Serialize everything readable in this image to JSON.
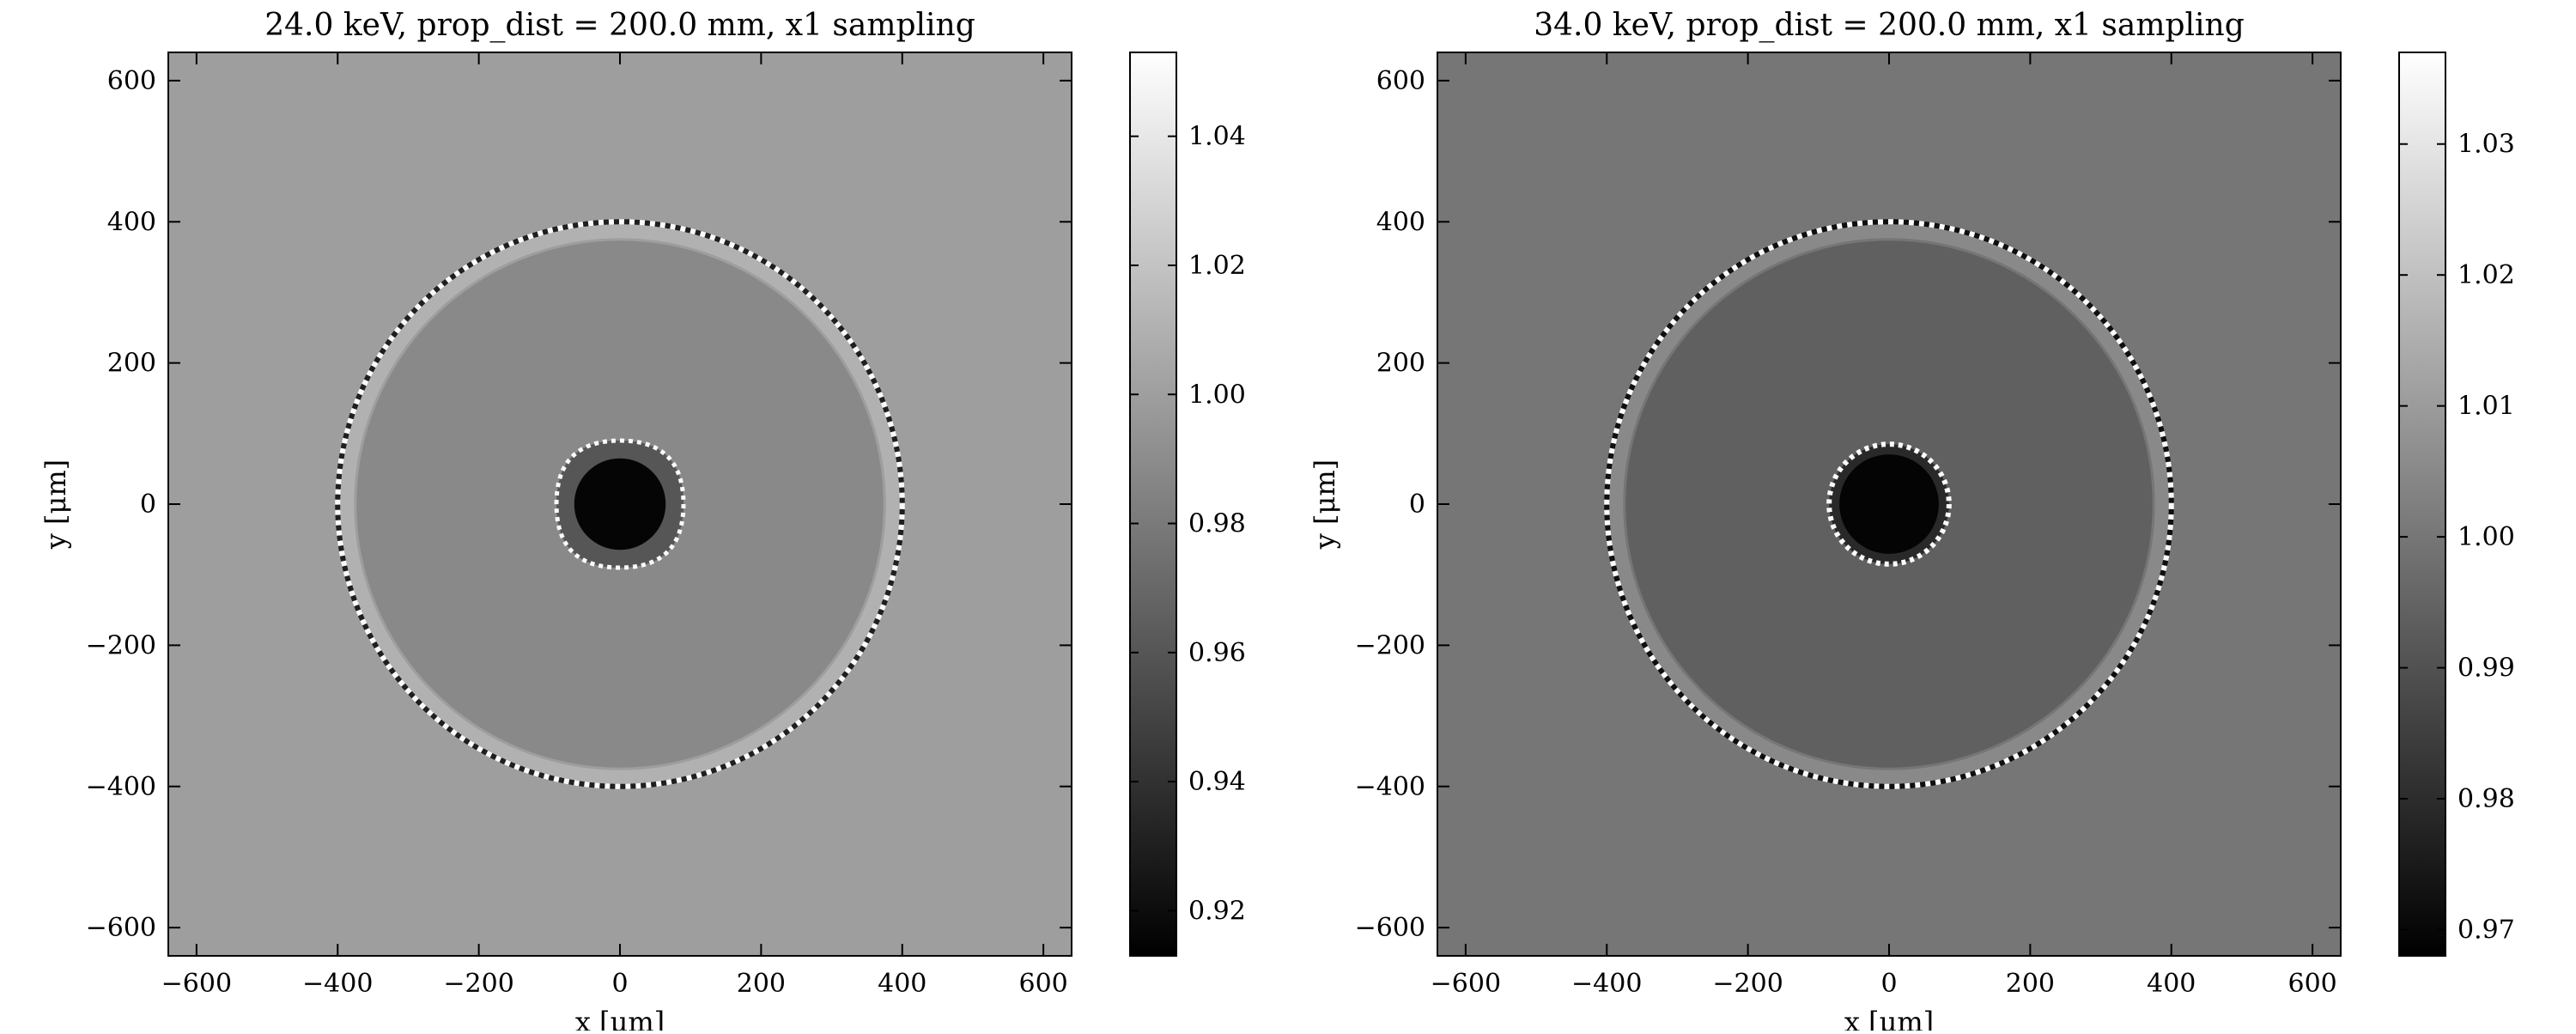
{
  "chart_data": [
    {
      "type": "heatmap",
      "title": "24.0 keV, prop_dist = 200.0 mm, x1 sampling",
      "xlabel": "x [μm]",
      "ylabel": "y [μm]",
      "xlim": [
        -640,
        640
      ],
      "ylim": [
        -640,
        640
      ],
      "xticks": [
        -600,
        -400,
        -200,
        0,
        200,
        400,
        600
      ],
      "yticks": [
        -600,
        -400,
        -200,
        0,
        200,
        400,
        600
      ],
      "xtick_labels": [
        "−600",
        "−400",
        "−200",
        "0",
        "200",
        "400",
        "600"
      ],
      "ytick_labels": [
        "−600",
        "−400",
        "−200",
        "0",
        "200",
        "400",
        "600"
      ],
      "colorbar": {
        "range": [
          0.913,
          1.053
        ],
        "ticks": [
          0.92,
          0.94,
          0.96,
          0.98,
          1.0,
          1.02,
          1.04
        ],
        "tick_labels": [
          "0.92",
          "0.94",
          "0.96",
          "0.98",
          "1.00",
          "1.02",
          "1.04"
        ],
        "colormap": "gray"
      },
      "field": {
        "background": 1.0,
        "outer_radius_um": 400,
        "inner_disc_value": 0.988,
        "inner_radius_um": 90,
        "core_value": 0.916,
        "ring_band_value": 1.01,
        "fringe_min": 0.93,
        "fringe_max": 1.05,
        "inner_shape": "rounded-diamond"
      },
      "grid": false
    },
    {
      "type": "heatmap",
      "title": "34.0 keV, prop_dist = 200.0 mm, x1 sampling",
      "xlabel": "x [μm]",
      "ylabel": "y [μm]",
      "xlim": [
        -640,
        640
      ],
      "ylim": [
        -640,
        640
      ],
      "xticks": [
        -600,
        -400,
        -200,
        0,
        200,
        400,
        600
      ],
      "yticks": [
        -600,
        -400,
        -200,
        0,
        200,
        400,
        600
      ],
      "xtick_labels": [
        "−600",
        "−400",
        "−200",
        "0",
        "200",
        "400",
        "600"
      ],
      "ytick_labels": [
        "−600",
        "−400",
        "−200",
        "0",
        "200",
        "400",
        "600"
      ],
      "colorbar": {
        "range": [
          0.968,
          1.037
        ],
        "ticks": [
          0.97,
          0.98,
          0.99,
          1.0,
          1.01,
          1.02,
          1.03
        ],
        "tick_labels": [
          "0.97",
          "0.98",
          "0.99",
          "1.00",
          "1.01",
          "1.02",
          "1.03"
        ],
        "colormap": "gray"
      },
      "field": {
        "background": 1.0,
        "outer_radius_um": 400,
        "inner_disc_value": 0.994,
        "inner_radius_um": 85,
        "core_value": 0.969,
        "ring_band_value": 1.005,
        "fringe_min": 0.972,
        "fringe_max": 1.036,
        "inner_shape": "circle"
      },
      "grid": false
    }
  ]
}
